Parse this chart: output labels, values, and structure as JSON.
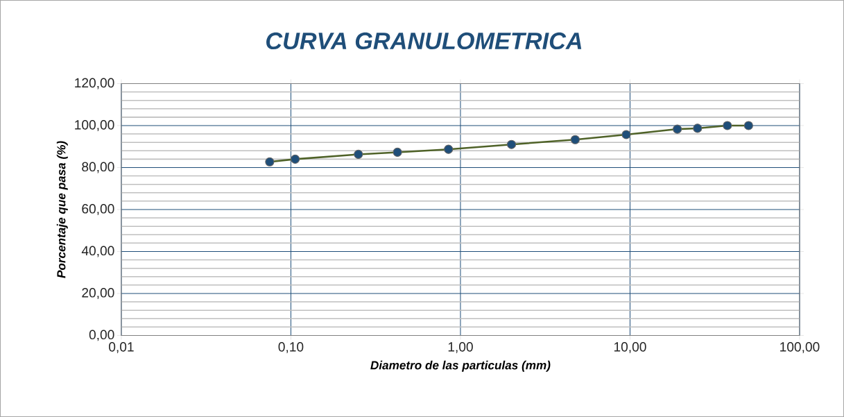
{
  "chart_data": {
    "type": "line",
    "title": "CURVA GRANULOMETRICA",
    "xlabel": "Diametro de las particulas (mm)",
    "ylabel": "Porcentaje que pasa (%)",
    "x": [
      0.075,
      0.106,
      0.25,
      0.425,
      0.85,
      2,
      4.75,
      9.5,
      19,
      25,
      37.5,
      50
    ],
    "values": [
      82.7,
      84.0,
      86.3,
      87.3,
      88.7,
      91.0,
      93.3,
      95.7,
      98.3,
      98.7,
      100,
      100
    ],
    "color": "#4f6228",
    "marker": "circle",
    "line_style": "solid",
    "log": "x",
    "grid": true,
    "xlim": [
      0.01,
      100
    ],
    "ylim": [
      0,
      120
    ],
    "xticks": [
      {
        "value": 0.01,
        "label": "0,01"
      },
      {
        "value": 0.1,
        "label": "0,10"
      },
      {
        "value": 1,
        "label": "1,00"
      },
      {
        "value": 10,
        "label": "10,00"
      },
      {
        "value": 100,
        "label": "100,00"
      }
    ],
    "yticks": [
      {
        "value": 0,
        "label": "0,00"
      },
      {
        "value": 20,
        "label": "20,00"
      },
      {
        "value": 40,
        "label": "40,00"
      },
      {
        "value": 60,
        "label": "60,00"
      },
      {
        "value": 80,
        "label": "80,00"
      },
      {
        "value": 100,
        "label": "100,00"
      },
      {
        "value": 120,
        "label": "120,00"
      }
    ]
  }
}
